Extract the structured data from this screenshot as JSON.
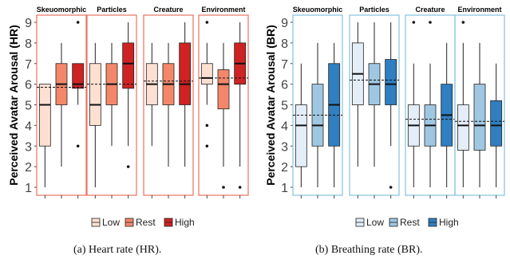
{
  "charts": [
    {
      "id": "hr",
      "caption": "(a)  Heart rate (HR).",
      "ylabel": "Perceived Avatar Arousal (HR)",
      "ylim": [
        1,
        9
      ],
      "panel_color": "#e8715f",
      "legend": {
        "Low": "#fde0d2",
        "Rest": "#f4876a",
        "High": "#cf2222"
      },
      "chart_data": {
        "type": "box",
        "ylabel": "Perceived Avatar Arousal (HR)",
        "y_ticks": [
          1,
          2,
          3,
          4,
          5,
          6,
          7,
          8,
          9
        ],
        "groups": [
          "Low",
          "Rest",
          "High"
        ],
        "panels": [
          {
            "title": "Skeuomorphic",
            "mean_line": 5.85,
            "boxes": [
              {
                "group": "Low",
                "min": 1,
                "q1": 3,
                "median": 5,
                "q3": 6,
                "max": 6,
                "outliers": []
              },
              {
                "group": "Rest",
                "min": 2,
                "q1": 5,
                "median": 6,
                "q3": 7,
                "max": 8,
                "outliers": []
              },
              {
                "group": "High",
                "min": 5,
                "q1": 5.8,
                "median": 6,
                "q3": 7,
                "max": 7,
                "outliers": [
                  9,
                  3
                ]
              }
            ]
          },
          {
            "title": "Particles",
            "mean_line": 6.0,
            "boxes": [
              {
                "group": "Low",
                "min": 1,
                "q1": 4,
                "median": 5,
                "q3": 7,
                "max": 8,
                "outliers": []
              },
              {
                "group": "Rest",
                "min": 3,
                "q1": 5,
                "median": 6,
                "q3": 7,
                "max": 8,
                "outliers": []
              },
              {
                "group": "High",
                "min": 3,
                "q1": 5.8,
                "median": 7,
                "q3": 8,
                "max": 9,
                "outliers": [
                  2
                ]
              }
            ]
          },
          {
            "title": "Creature",
            "mean_line": 6.15,
            "boxes": [
              {
                "group": "Low",
                "min": 3,
                "q1": 5,
                "median": 6,
                "q3": 7,
                "max": 8,
                "outliers": []
              },
              {
                "group": "Rest",
                "min": 2,
                "q1": 5,
                "median": 6,
                "q3": 7,
                "max": 8,
                "outliers": []
              },
              {
                "group": "High",
                "min": 2,
                "q1": 5,
                "median": 6,
                "q3": 8,
                "max": 9,
                "outliers": []
              }
            ]
          },
          {
            "title": "Environment",
            "mean_line": 6.3,
            "boxes": [
              {
                "group": "Low",
                "min": 5,
                "q1": 6,
                "median": 6.3,
                "q3": 7,
                "max": 8,
                "outliers": [
                  9,
                  4,
                  3
                ]
              },
              {
                "group": "Rest",
                "min": 2,
                "q1": 4.8,
                "median": 6,
                "q3": 6.7,
                "max": 8,
                "outliers": [
                  1
                ]
              },
              {
                "group": "High",
                "min": 2,
                "q1": 6,
                "median": 7,
                "q3": 8,
                "max": 9,
                "outliers": [
                  1
                ]
              }
            ]
          }
        ]
      }
    },
    {
      "id": "br",
      "caption": "(b)  Breathing rate (BR).",
      "ylabel": "Perceived Avatar Arousal (BR)",
      "ylim": [
        1,
        9
      ],
      "panel_color": "#86c2dc",
      "legend": {
        "Low": "#e4eef8",
        "Rest": "#9fc7e2",
        "High": "#2f7fc1"
      },
      "chart_data": {
        "type": "box",
        "ylabel": "Perceived Avatar Arousal (BR)",
        "y_ticks": [
          1,
          2,
          3,
          4,
          5,
          6,
          7,
          8,
          9
        ],
        "groups": [
          "Low",
          "Rest",
          "High"
        ],
        "panels": [
          {
            "title": "Skeuomorphic",
            "mean_line": 4.5,
            "boxes": [
              {
                "group": "Low",
                "min": 1,
                "q1": 2,
                "median": 4,
                "q3": 5,
                "max": 7,
                "outliers": []
              },
              {
                "group": "Rest",
                "min": 1,
                "q1": 3,
                "median": 4,
                "q3": 6,
                "max": 8,
                "outliers": []
              },
              {
                "group": "High",
                "min": 1,
                "q1": 3,
                "median": 5,
                "q3": 7,
                "max": 8,
                "outliers": []
              }
            ]
          },
          {
            "title": "Particles",
            "mean_line": 6.2,
            "boxes": [
              {
                "group": "Low",
                "min": 2,
                "q1": 5,
                "median": 6.5,
                "q3": 8,
                "max": 9,
                "outliers": []
              },
              {
                "group": "Rest",
                "min": 2,
                "q1": 5,
                "median": 6,
                "q3": 7,
                "max": 9,
                "outliers": []
              },
              {
                "group": "High",
                "min": 3,
                "q1": 5,
                "median": 6,
                "q3": 7.2,
                "max": 9,
                "outliers": [
                  1
                ]
              }
            ]
          },
          {
            "title": "Creature",
            "mean_line": 4.3,
            "boxes": [
              {
                "group": "Low",
                "min": 1,
                "q1": 3,
                "median": 4,
                "q3": 5,
                "max": 7,
                "outliers": [
                  9
                ]
              },
              {
                "group": "Rest",
                "min": 1,
                "q1": 3,
                "median": 4,
                "q3": 5,
                "max": 7,
                "outliers": [
                  9
                ]
              },
              {
                "group": "High",
                "min": 1,
                "q1": 3,
                "median": 4.5,
                "q3": 6,
                "max": 8,
                "outliers": []
              }
            ]
          },
          {
            "title": "Environment",
            "mean_line": 4.2,
            "boxes": [
              {
                "group": "Low",
                "min": 1,
                "q1": 2.8,
                "median": 4,
                "q3": 5,
                "max": 8,
                "outliers": [
                  9
                ]
              },
              {
                "group": "Rest",
                "min": 1,
                "q1": 2.8,
                "median": 4,
                "q3": 6,
                "max": 8,
                "outliers": []
              },
              {
                "group": "High",
                "min": 1,
                "q1": 3,
                "median": 4,
                "q3": 5.2,
                "max": 7,
                "outliers": []
              }
            ]
          }
        ]
      }
    }
  ]
}
